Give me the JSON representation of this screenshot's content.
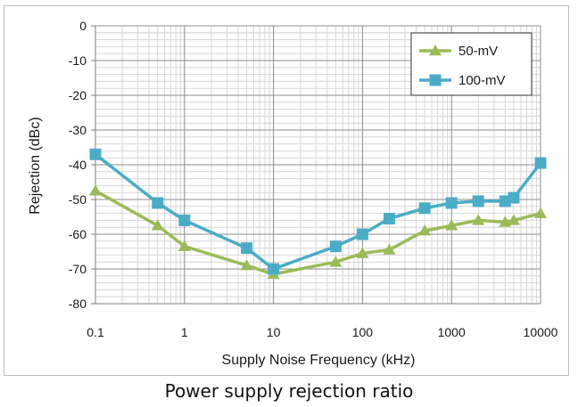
{
  "caption": "Power supply rejection ratio",
  "chart_data": {
    "type": "line",
    "xscale": "log",
    "x_ticks": [
      "0.1",
      "1",
      "10",
      "100",
      "1000",
      "10000"
    ],
    "y_ticks": [
      "0",
      "-10",
      "-20",
      "-30",
      "-40",
      "-50",
      "-60",
      "-70",
      "-80"
    ],
    "xlabel": "Supply Noise Frequency (kHz)",
    "ylabel": "Rejection (dBc)",
    "xlim": [
      0.1,
      10000
    ],
    "ylim": [
      -80,
      0
    ],
    "grid": true,
    "legend_position": "top-right",
    "series": [
      {
        "name": "50-mV",
        "color": "#9bbb59",
        "marker": "triangle",
        "x": [
          0.1,
          0.5,
          1,
          5,
          10,
          50,
          100,
          200,
          500,
          1000,
          2000,
          4000,
          5000,
          10000
        ],
        "values": [
          -47.5,
          -57.5,
          -63.5,
          -69,
          -71.5,
          -68,
          -65.5,
          -64.5,
          -59,
          -57.5,
          -56,
          -56.5,
          -56,
          -54
        ]
      },
      {
        "name": "100-mV",
        "color": "#4bacc6",
        "marker": "square",
        "x": [
          0.1,
          0.5,
          1,
          5,
          10,
          50,
          100,
          200,
          500,
          1000,
          2000,
          4000,
          5000,
          10000
        ],
        "values": [
          -37,
          -51,
          -56,
          -64,
          -70,
          -63.5,
          -60,
          -55.5,
          -52.5,
          -51,
          -50.5,
          -50.5,
          -49.5,
          -39.5
        ]
      }
    ]
  }
}
